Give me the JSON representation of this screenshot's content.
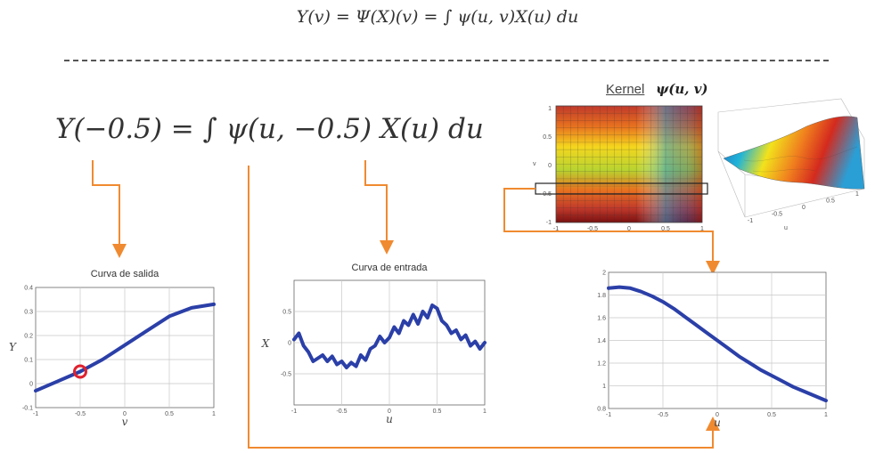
{
  "formulas": {
    "top": "Y(v) = Ψ(X)(v) = ∫ ψ(u, v)X(u) du",
    "main": "Y(−0.5) = ∫ ψ(u, −0.5) X(u) du"
  },
  "kernel": {
    "label": "Kernel",
    "symbol": "ψ(u, v)",
    "heatmap_ticks_x": [
      "-1",
      "-0.5",
      "0",
      "0.5",
      "1"
    ],
    "heatmap_ticks_y": [
      "1",
      "0.5",
      "0",
      "-0.5",
      "-1"
    ],
    "axis_v": "v",
    "surface_ticks_u": [
      "-1",
      "-0.5",
      "0",
      "0.5",
      "1"
    ],
    "surface_axis_label": "u"
  },
  "colors": {
    "arrow": "#f08a30",
    "curve": "#2b3fa8",
    "marker": "#e0222e",
    "grid": "#c8c8c8",
    "divider": "#555555"
  },
  "chart_data": [
    {
      "type": "line",
      "title": "Curva de salida",
      "xlabel": "v",
      "ylabel": "Y",
      "xlim": [
        -1,
        1
      ],
      "ylim": [
        -0.1,
        0.4
      ],
      "xticks": [
        "-1",
        "-0.5",
        "0",
        "0.5",
        "1"
      ],
      "yticks": [
        "0.4",
        "0.3",
        "0.2",
        "0.1",
        "0",
        "-0.1"
      ],
      "x": [
        -1,
        -0.75,
        -0.5,
        -0.25,
        0,
        0.25,
        0.5,
        0.75,
        1
      ],
      "y": [
        -0.03,
        0.01,
        0.05,
        0.1,
        0.16,
        0.22,
        0.28,
        0.315,
        0.33
      ],
      "highlight": {
        "x": -0.5,
        "y": 0.05
      }
    },
    {
      "type": "line",
      "title": "Curva de entrada",
      "xlabel": "u",
      "ylabel": "X",
      "xlim": [
        -1,
        1
      ],
      "ylim": [
        -1,
        1
      ],
      "xticks": [
        "-1",
        "-0.5",
        "0",
        "0.5",
        "1"
      ],
      "yticks": [
        "0.5",
        "0",
        "-0.5"
      ],
      "x": [
        -1,
        -0.95,
        -0.9,
        -0.85,
        -0.8,
        -0.75,
        -0.7,
        -0.65,
        -0.6,
        -0.55,
        -0.5,
        -0.45,
        -0.4,
        -0.35,
        -0.3,
        -0.25,
        -0.2,
        -0.15,
        -0.1,
        -0.05,
        0,
        0.05,
        0.1,
        0.15,
        0.2,
        0.25,
        0.3,
        0.35,
        0.4,
        0.45,
        0.5,
        0.55,
        0.6,
        0.65,
        0.7,
        0.75,
        0.8,
        0.85,
        0.9,
        0.95,
        1
      ],
      "y": [
        0.05,
        0.15,
        -0.05,
        -0.15,
        -0.3,
        -0.25,
        -0.2,
        -0.3,
        -0.22,
        -0.35,
        -0.3,
        -0.4,
        -0.32,
        -0.38,
        -0.2,
        -0.28,
        -0.1,
        -0.05,
        0.1,
        0.0,
        0.08,
        0.25,
        0.15,
        0.35,
        0.28,
        0.45,
        0.3,
        0.5,
        0.4,
        0.6,
        0.55,
        0.35,
        0.28,
        0.15,
        0.2,
        0.05,
        0.12,
        -0.05,
        0.02,
        -0.1,
        0.0
      ]
    },
    {
      "type": "line",
      "title": "",
      "xlabel": "u",
      "ylabel": "",
      "xlim": [
        -1,
        1
      ],
      "ylim": [
        0.8,
        2
      ],
      "xticks": [
        "-1",
        "-0.5",
        "0",
        "0.5",
        "1"
      ],
      "yticks": [
        "2",
        "1.8",
        "1.6",
        "1.4",
        "1.2",
        "1",
        "0.8"
      ],
      "x": [
        -1,
        -0.9,
        -0.8,
        -0.7,
        -0.6,
        -0.5,
        -0.4,
        -0.3,
        -0.2,
        -0.1,
        0,
        0.1,
        0.2,
        0.3,
        0.4,
        0.5,
        0.6,
        0.7,
        0.8,
        0.9,
        1
      ],
      "y": [
        1.86,
        1.87,
        1.86,
        1.83,
        1.79,
        1.74,
        1.68,
        1.61,
        1.54,
        1.47,
        1.4,
        1.33,
        1.26,
        1.2,
        1.14,
        1.09,
        1.04,
        0.99,
        0.95,
        0.91,
        0.87
      ]
    }
  ]
}
